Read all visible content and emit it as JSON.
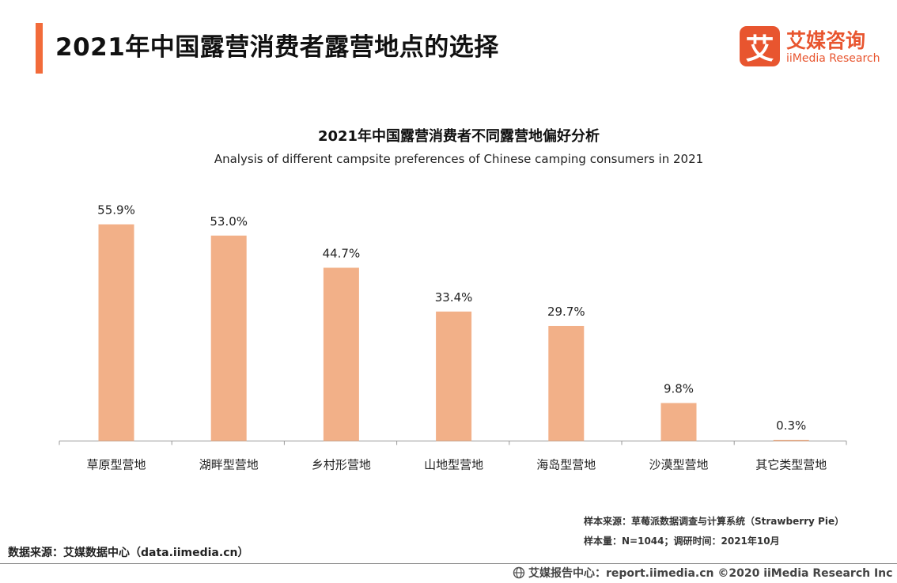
{
  "header": {
    "title": "2021年中国露营消费者露营地点的选择"
  },
  "logo": {
    "mark": "艾",
    "name_cn": "艾媒咨询",
    "name_en": "iiMedia Research"
  },
  "chart_data": {
    "type": "bar",
    "title": "2021年中国露营消费者不同露营地偏好分析",
    "subtitle": "Analysis of different campsite preferences of Chinese camping consumers in 2021",
    "categories": [
      "草原型营地",
      "湖畔型营地",
      "乡村形营地",
      "山地型营地",
      "海岛型营地",
      "沙漠型营地",
      "其它类型营地"
    ],
    "values": [
      55.9,
      53.0,
      44.7,
      33.4,
      29.7,
      9.8,
      0.3
    ],
    "value_labels": [
      "55.9%",
      "53.0%",
      "44.7%",
      "33.4%",
      "29.7%",
      "9.8%",
      "0.3%"
    ],
    "unit": "%",
    "ylim": [
      0,
      60
    ],
    "grid": false,
    "bar_color": "#f2b088",
    "xlabel": "",
    "ylabel": ""
  },
  "sources": {
    "sample_source": "样本来源：草莓派数据调查与计算系统（Strawberry Pie）",
    "sample_size": "样本量：N=1044；调研时间：2021年10月",
    "data_source": "数据来源：艾媒数据中心（data.iimedia.cn）"
  },
  "footer": {
    "text": "艾媒报告中心：report.iimedia.cn  ©2020  iiMedia Research  Inc",
    "icon": "globe-icon"
  },
  "colors": {
    "accent": "#f26b3a",
    "brand": "#e8552f"
  }
}
